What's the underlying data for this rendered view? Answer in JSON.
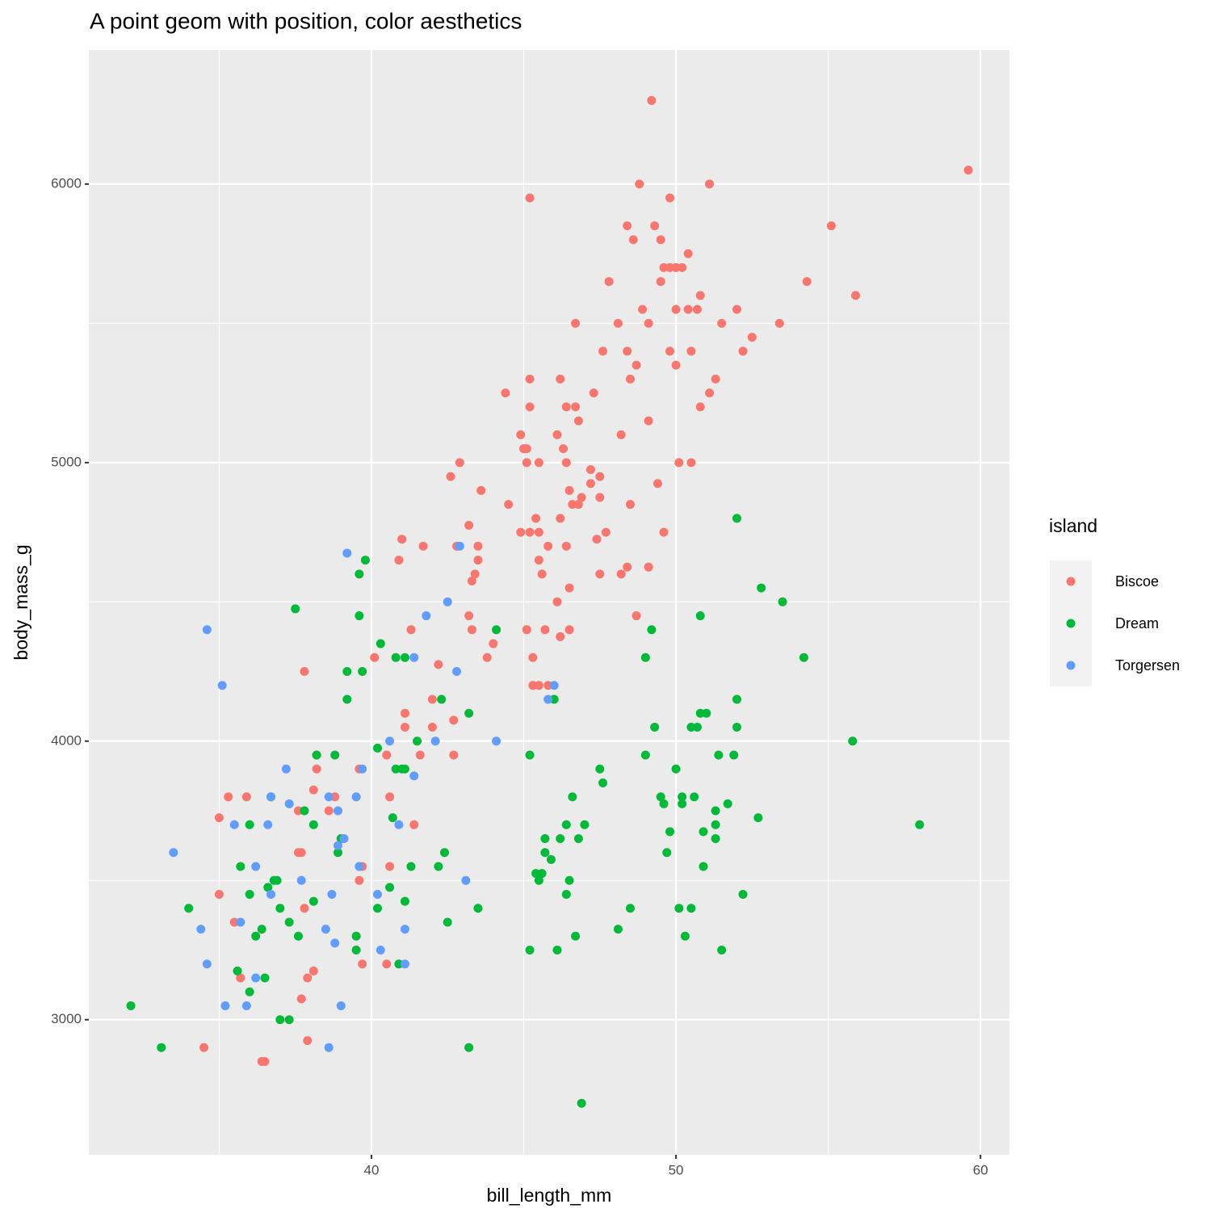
{
  "chart_data": {
    "type": "scatter",
    "title": "A point geom with position, color aesthetics",
    "x_label": "bill_length_mm",
    "y_label": "body_mass_g",
    "legend_title": "island",
    "legend_position": "right",
    "xlim": [
      30.72,
      60.95
    ],
    "ylim": [
      2515,
      6481
    ],
    "xticks": [
      40,
      50,
      60
    ],
    "yticks": [
      3000,
      4000,
      5000,
      6000
    ],
    "xminor": [
      35,
      45,
      55
    ],
    "yminor": [
      3500,
      4500,
      5500
    ],
    "grid": true,
    "series": [
      {
        "name": "Biscoe",
        "color": "#F8766D",
        "x": [
          49.2,
          59.6,
          45.2,
          48.8,
          51.1,
          49.8,
          48.4,
          49.3,
          55.1,
          48.6,
          49.5,
          50.4,
          49.6,
          49.8,
          50.0,
          50.2,
          47.8,
          49.5,
          54.3,
          50.8,
          55.9,
          48.9,
          50.0,
          50.4,
          50.7,
          52.0,
          46.7,
          48.1,
          49.1,
          51.5,
          53.4,
          52.5,
          47.6,
          48.4,
          49.8,
          50.5,
          52.2,
          48.7,
          50.0,
          45.2,
          46.2,
          48.5,
          51.3,
          44.4,
          47.3,
          51.1,
          45.2,
          46.4,
          46.7,
          50.8,
          46.8,
          49.1,
          44.9,
          46.1,
          48.2,
          45.0,
          45.1,
          46.3,
          42.9,
          45.1,
          45.5,
          46.4,
          50.1,
          50.5,
          47.2,
          42.6,
          47.5,
          47.2,
          49.4,
          43.6,
          46.5,
          46.9,
          47.5,
          44.5,
          46.6,
          46.8,
          48.5,
          43.2,
          45.4,
          46.2,
          44.9,
          45.2,
          45.5,
          47.4,
          47.7,
          49.6,
          41.0,
          41.7,
          42.8,
          43.5,
          45.8,
          46.4,
          40.9,
          43.5,
          45.5,
          48.4,
          49.1,
          43.4,
          45.6,
          47.5,
          48.2,
          43.3,
          46.5,
          46.1,
          43.2,
          48.7,
          41.3,
          43.3,
          45.1,
          45.7,
          46.5,
          46.2,
          44.0,
          40.1,
          43.8,
          45.3,
          42.2,
          37.8,
          45.3,
          45.5,
          45.8,
          42.0,
          41.1,
          42.7,
          41.1,
          42.0,
          40.5,
          41.6,
          42.7,
          38.2,
          38.2,
          39.6,
          38.1,
          35.3,
          35.9,
          38.8,
          40.6,
          37.6,
          38.6,
          35.0,
          41.4,
          37.6,
          37.7,
          39.7,
          40.6,
          39.6,
          35.0,
          37.8,
          35.5,
          37.7,
          35.7,
          37.9,
          38.1,
          39.7,
          40.5,
          34.5,
          37.9,
          36.4,
          36.5
        ],
        "values": [
          6300,
          6050,
          5950,
          6000,
          6000,
          5950,
          5850,
          5850,
          5850,
          5800,
          5800,
          5750,
          5700,
          5700,
          5700,
          5700,
          5650,
          5650,
          5650,
          5600,
          5600,
          5550,
          5550,
          5550,
          5550,
          5550,
          5500,
          5500,
          5500,
          5500,
          5500,
          5450,
          5400,
          5400,
          5400,
          5400,
          5400,
          5350,
          5350,
          5300,
          5300,
          5300,
          5300,
          5250,
          5250,
          5250,
          5200,
          5200,
          5200,
          5200,
          5150,
          5150,
          5100,
          5100,
          5100,
          5050,
          5050,
          5050,
          5000,
          5000,
          5000,
          5000,
          5000,
          5000,
          4975,
          4950,
          4950,
          4925,
          4925,
          4900,
          4900,
          4875,
          4875,
          4850,
          4850,
          4850,
          4850,
          4775,
          4800,
          4800,
          4750,
          4750,
          4750,
          4725,
          4750,
          4750,
          4725,
          4700,
          4700,
          4700,
          4700,
          4700,
          4650,
          4650,
          4650,
          4625,
          4625,
          4600,
          4600,
          4600,
          4600,
          4575,
          4550,
          4500,
          4450,
          4450,
          4400,
          4400,
          4400,
          4400,
          4400,
          4375,
          4350,
          4300,
          4300,
          4300,
          4275,
          4250,
          4200,
          4200,
          4200,
          4150,
          4100,
          4075,
          4050,
          4050,
          3950,
          3950,
          3950,
          3950,
          3900,
          3900,
          3825,
          3800,
          3800,
          3800,
          3800,
          3750,
          3750,
          3725,
          3700,
          3600,
          3600,
          3550,
          3550,
          3500,
          3450,
          3400,
          3350,
          3075,
          3150,
          3150,
          3175,
          3200,
          3200,
          2900,
          2925,
          2850,
          2850
        ]
      },
      {
        "name": "Dream",
        "color": "#00BA38",
        "x": [
          52.0,
          39.8,
          39.6,
          52.8,
          53.5,
          37.5,
          39.6,
          50.8,
          44.1,
          49.2,
          40.3,
          40.8,
          41.1,
          49.0,
          54.2,
          39.2,
          39.7,
          39.2,
          42.3,
          46.0,
          52.0,
          43.2,
          50.8,
          51.0,
          49.3,
          50.5,
          50.7,
          52.0,
          55.8,
          41.5,
          40.2,
          38.2,
          38.8,
          45.2,
          49.0,
          51.4,
          51.9,
          40.8,
          41.0,
          41.1,
          47.5,
          50.0,
          47.6,
          36.7,
          46.6,
          49.5,
          50.2,
          50.6,
          49.6,
          50.2,
          51.7,
          37.8,
          51.3,
          40.7,
          52.7,
          36.0,
          38.1,
          46.4,
          47.0,
          51.3,
          58.0,
          49.8,
          50.9,
          39.0,
          45.7,
          46.2,
          46.8,
          51.3,
          38.9,
          42.4,
          45.7,
          49.7,
          45.9,
          35.7,
          41.3,
          42.2,
          50.9,
          45.4,
          45.6,
          36.8,
          36.9,
          45.5,
          46.5,
          36.6,
          40.6,
          36.0,
          46.4,
          52.2,
          38.1,
          41.1,
          34.0,
          37.0,
          40.2,
          43.5,
          48.5,
          50.1,
          50.5,
          37.3,
          42.5,
          36.4,
          48.1,
          36.2,
          37.6,
          39.5,
          46.7,
          50.3,
          39.5,
          45.2,
          46.1,
          51.5,
          40.9,
          35.6,
          36.5,
          36.0,
          32.1,
          37.0,
          37.3,
          33.1,
          43.2,
          46.9
        ],
        "values": [
          4800,
          4650,
          4600,
          4550,
          4500,
          4475,
          4450,
          4450,
          4400,
          4400,
          4350,
          4300,
          4300,
          4300,
          4300,
          4250,
          4250,
          4150,
          4150,
          4150,
          4150,
          4100,
          4100,
          4100,
          4050,
          4050,
          4050,
          4050,
          4000,
          4000,
          3975,
          3950,
          3950,
          3950,
          3950,
          3950,
          3950,
          3900,
          3900,
          3900,
          3900,
          3900,
          3850,
          3800,
          3800,
          3800,
          3800,
          3800,
          3775,
          3775,
          3775,
          3750,
          3750,
          3725,
          3725,
          3700,
          3700,
          3700,
          3700,
          3700,
          3700,
          3675,
          3675,
          3650,
          3650,
          3650,
          3650,
          3650,
          3600,
          3600,
          3600,
          3600,
          3575,
          3550,
          3550,
          3550,
          3550,
          3525,
          3525,
          3500,
          3500,
          3500,
          3500,
          3475,
          3475,
          3450,
          3450,
          3450,
          3425,
          3425,
          3400,
          3400,
          3400,
          3400,
          3400,
          3400,
          3400,
          3350,
          3350,
          3325,
          3325,
          3300,
          3300,
          3300,
          3300,
          3300,
          3250,
          3250,
          3250,
          3250,
          3200,
          3175,
          3150,
          3100,
          3050,
          3000,
          3000,
          2900,
          2900,
          2700
        ]
      },
      {
        "name": "Torgersen",
        "color": "#619CFF",
        "x": [
          39.2,
          42.5,
          34.6,
          41.8,
          41.4,
          42.8,
          35.1,
          46.0,
          45.8,
          40.6,
          42.1,
          44.1,
          37.2,
          39.7,
          41.4,
          36.7,
          38.6,
          39.5,
          37.3,
          38.9,
          35.5,
          36.6,
          40.9,
          39.1,
          38.9,
          33.5,
          36.2,
          39.6,
          37.7,
          43.1,
          36.7,
          38.7,
          40.2,
          35.7,
          34.4,
          38.5,
          41.1,
          38.8,
          40.3,
          34.6,
          41.1,
          36.2,
          35.2,
          35.9,
          39.0,
          38.6,
          42.9
        ],
        "values": [
          4675,
          4500,
          4400,
          4450,
          4300,
          4250,
          4200,
          4200,
          4150,
          4000,
          4000,
          4000,
          3900,
          3900,
          3875,
          3800,
          3800,
          3800,
          3775,
          3750,
          3700,
          3700,
          3700,
          3650,
          3625,
          3600,
          3550,
          3550,
          3500,
          3500,
          3450,
          3450,
          3450,
          3350,
          3325,
          3325,
          3325,
          3275,
          3250,
          3200,
          3200,
          3150,
          3050,
          3050,
          3050,
          2900,
          4700
        ]
      }
    ]
  }
}
